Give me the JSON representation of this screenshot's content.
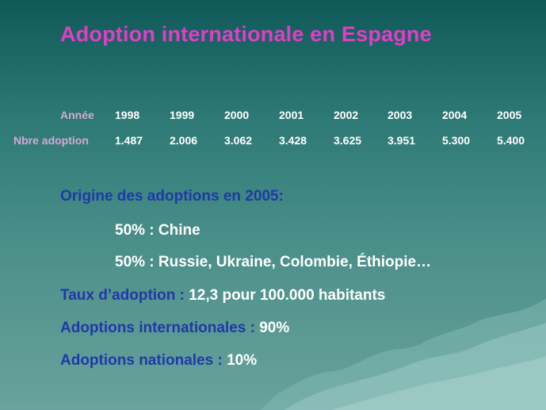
{
  "title": "Adoption internationale en Espagne",
  "table": {
    "year_label": "Année",
    "count_label": "Nbre adoption",
    "years": [
      "1998",
      "1999",
      "2000",
      "2001",
      "2002",
      "2003",
      "2004",
      "2005"
    ],
    "counts": [
      "1.487",
      "2.006",
      "3.062",
      "3.428",
      "3.625",
      "3.951",
      "5.300",
      "5.400"
    ]
  },
  "origin": {
    "title": "Origine des adoptions en 2005:",
    "items": [
      "50% : Chine",
      "50% : Russie, Ukraine, Colombie, Éthiopie…"
    ]
  },
  "rate": {
    "label": "Taux d’adoption :",
    "value": "12,3 pour 100.000 habitants"
  },
  "international": {
    "label": "Adoptions internationales :",
    "value": "90%"
  },
  "national": {
    "label": "Adoptions nationales :",
    "value": "10%"
  },
  "colors": {
    "title": "#e13ec6",
    "header_labels": "#d6a7d7",
    "blue_text": "#1e3aa8",
    "white_text": "#ffffff",
    "background_top": "#0f5a59",
    "background_bottom": "#6aa29c"
  }
}
